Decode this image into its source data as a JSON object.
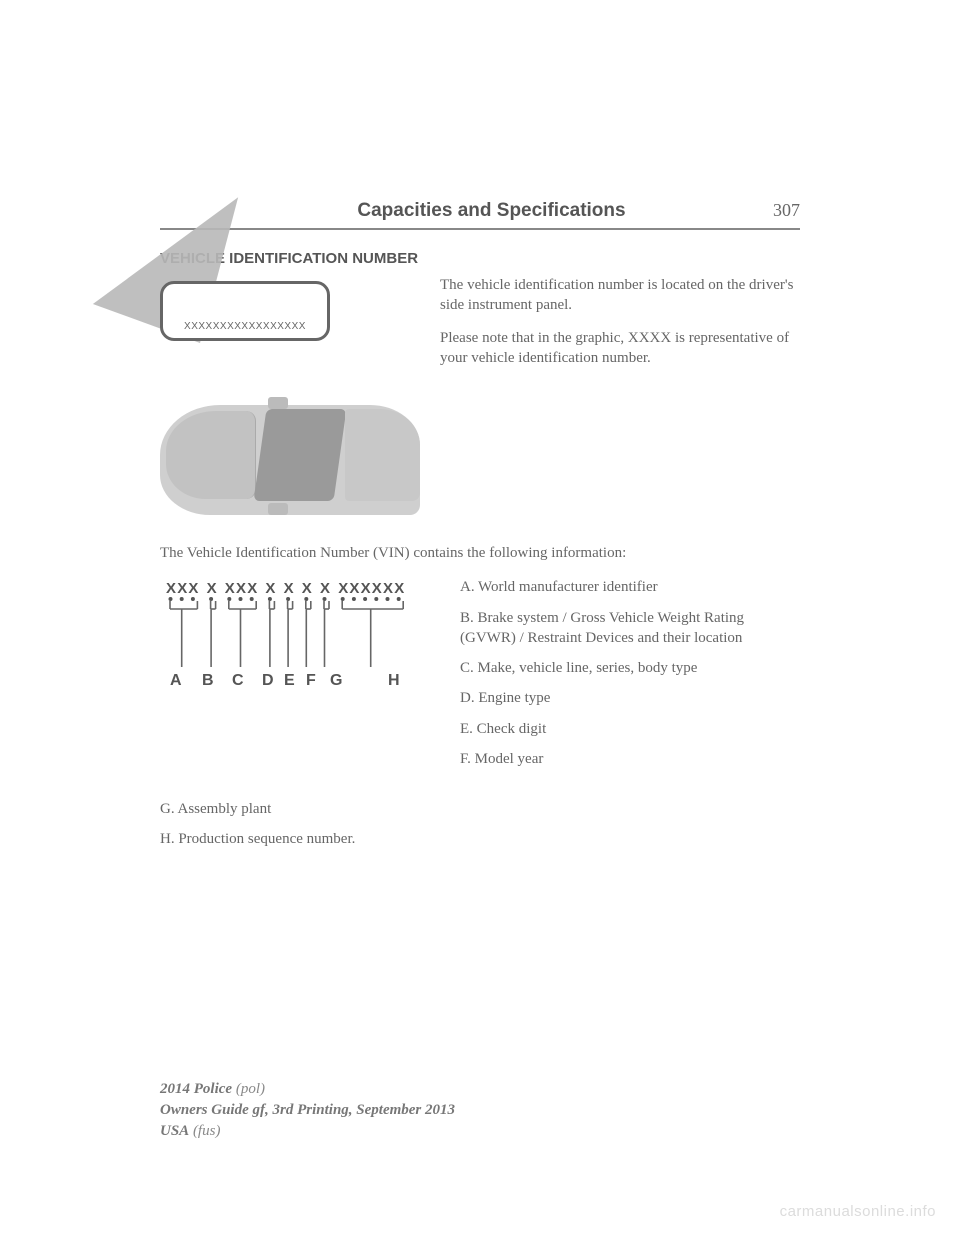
{
  "header": {
    "title": "Capacities and Specifications",
    "page_number": "307"
  },
  "section_heading": "VEHICLE IDENTIFICATION NUMBER",
  "vin_plate_text": "XXXXXXXXXXXXXXXXX",
  "intro_paragraphs": [
    "The vehicle identification number is located on the driver's side instrument panel.",
    "Please note that in the graphic, XXXX is representative of your vehicle identification number."
  ],
  "mid_paragraph": "The Vehicle Identification Number (VIN) contains the following information:",
  "vin_diagram": {
    "groups": [
      {
        "letters": "XXX",
        "label": "A"
      },
      {
        "letters": "X",
        "label": "B"
      },
      {
        "letters": "XXX",
        "label": "C"
      },
      {
        "letters": "X",
        "label": "D"
      },
      {
        "letters": "X",
        "label": "E"
      },
      {
        "letters": "X",
        "label": "F"
      },
      {
        "letters": "X",
        "label": "G"
      },
      {
        "letters": "XXXXXX",
        "label": "H"
      }
    ],
    "font_family": "Arial",
    "x_fontsize": 15,
    "label_fontsize": 16,
    "color": "#555555",
    "line_color": "#666666"
  },
  "decode_items_right": [
    "A. World manufacturer identifier",
    "B. Brake system / Gross Vehicle Weight Rating (GVWR) / Restraint Devices and their location",
    "C. Make, vehicle line, series, body type",
    "D. Engine type",
    "E. Check digit",
    "F. Model year"
  ],
  "decode_items_below": [
    "G. Assembly plant",
    "H. Production sequence number."
  ],
  "footer": {
    "line1_bold": "2014 Police",
    "line1_ital": "(pol)",
    "line2": "Owners Guide gf, 3rd Printing, September 2013",
    "line3_bold": "USA",
    "line3_ital": "(fus)"
  },
  "watermark": "carmanualsonline.info",
  "colors": {
    "text": "#666666",
    "heading": "#555555",
    "rule": "#888888",
    "illustration_fill": "#cfcfcf",
    "watermark": "#dcdcdc"
  }
}
